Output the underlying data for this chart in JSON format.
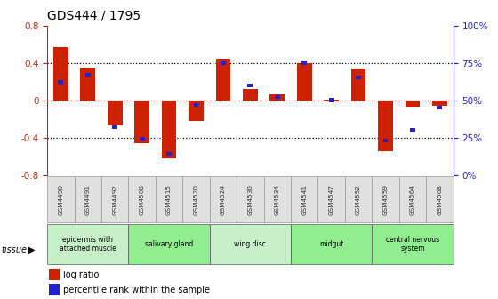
{
  "title": "GDS444 / 1795",
  "samples": [
    "GSM4490",
    "GSM4491",
    "GSM4492",
    "GSM4508",
    "GSM4515",
    "GSM4520",
    "GSM4524",
    "GSM4530",
    "GSM4534",
    "GSM4541",
    "GSM4547",
    "GSM4552",
    "GSM4559",
    "GSM4564",
    "GSM4568"
  ],
  "log_ratio": [
    0.57,
    0.35,
    -0.27,
    -0.46,
    -0.62,
    -0.22,
    0.44,
    0.12,
    0.06,
    0.4,
    0.01,
    0.34,
    -0.55,
    -0.07,
    -0.06
  ],
  "percentile": [
    62,
    67,
    32,
    24,
    14,
    47,
    75,
    60,
    52,
    75,
    50,
    65,
    23,
    30,
    45
  ],
  "tissue_groups": [
    {
      "label": "epidermis with\nattached muscle",
      "start": 0,
      "end": 3,
      "color": "#c8f0c8"
    },
    {
      "label": "salivary gland",
      "start": 3,
      "end": 6,
      "color": "#90ee90"
    },
    {
      "label": "wing disc",
      "start": 6,
      "end": 9,
      "color": "#c8f0c8"
    },
    {
      "label": "midgut",
      "start": 9,
      "end": 12,
      "color": "#90ee90"
    },
    {
      "label": "central nervous\nsystem",
      "start": 12,
      "end": 15,
      "color": "#90ee90"
    }
  ],
  "ylim_left": [
    -0.8,
    0.8
  ],
  "bar_width": 0.55,
  "red_color": "#cc2200",
  "blue_color": "#2222cc",
  "bg_color": "#ffffff",
  "zero_line_color": "#cc0000",
  "tick_label_color_left": "#cc2200",
  "tick_label_color_right": "#2222cc",
  "label_fontsize": 7,
  "title_fontsize": 10,
  "right_yticks": [
    0,
    25,
    50,
    75,
    100
  ],
  "right_yticklabels": [
    "0%",
    "25%",
    "50%",
    "75%",
    "100%"
  ]
}
